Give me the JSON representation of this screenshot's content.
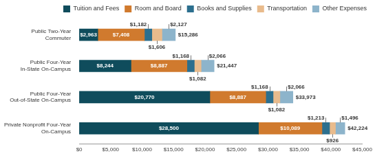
{
  "chart_data": {
    "type": "bar",
    "orientation": "horizontal",
    "stacked": true,
    "data_labels": true,
    "grid": false,
    "legend": "top",
    "categories": [
      "Public Two-Year Commuter",
      "Public Four-Year In-State On-Campus",
      "Public Four-Year Out-of-State On-Campus",
      "Private Nonprofit Four-Year On-Campus"
    ],
    "series": [
      {
        "name": "Tuition and Fees",
        "color": "#0f4c5c",
        "values": [
          2963,
          8244,
          20770,
          28500
        ],
        "value_labels": [
          "$2,963",
          "$8,244",
          "$20,770",
          "$28,500"
        ]
      },
      {
        "name": "Room and Board",
        "color": "#d07a2e",
        "values": [
          7408,
          8887,
          8887,
          10089
        ],
        "value_labels": [
          "$7,408",
          "$8,887",
          "$8,887",
          "$10,089"
        ]
      },
      {
        "name": "Books and Supplies",
        "color": "#2c6f8e",
        "values": [
          1182,
          1168,
          1168,
          1213
        ],
        "value_labels": [
          "$1,182",
          "$1,168",
          "$1,168",
          "$1,213"
        ]
      },
      {
        "name": "Transportation",
        "color": "#e9bb8c",
        "values": [
          1606,
          1082,
          1082,
          926
        ],
        "value_labels": [
          "$1,606",
          "$1,082",
          "$1,082",
          "$926"
        ]
      },
      {
        "name": "Other Expenses",
        "color": "#8db4cb",
        "values": [
          2127,
          2066,
          2066,
          1496
        ],
        "value_labels": [
          "$2,127",
          "$2,066",
          "$2,066",
          "$1,496"
        ]
      }
    ],
    "totals": [
      15286,
      21447,
      33973,
      42224
    ],
    "total_labels": [
      "$15,286",
      "$21,447",
      "$33,973",
      "$42,224"
    ],
    "xlim": [
      0,
      45000
    ],
    "xticks": [
      {
        "value": 0,
        "label": "$0"
      },
      {
        "value": 5000,
        "label": "$5,000"
      },
      {
        "value": 10000,
        "label": "$10,000"
      },
      {
        "value": 15000,
        "label": "$15,000"
      },
      {
        "value": 20000,
        "label": "$20,000"
      },
      {
        "value": 25000,
        "label": "$25,000"
      },
      {
        "value": 30000,
        "label": "$30,000"
      },
      {
        "value": 35000,
        "label": "$35,000"
      },
      {
        "value": 40000,
        "label": "$40,000"
      },
      {
        "value": 45000,
        "label": "$45,000"
      }
    ]
  }
}
